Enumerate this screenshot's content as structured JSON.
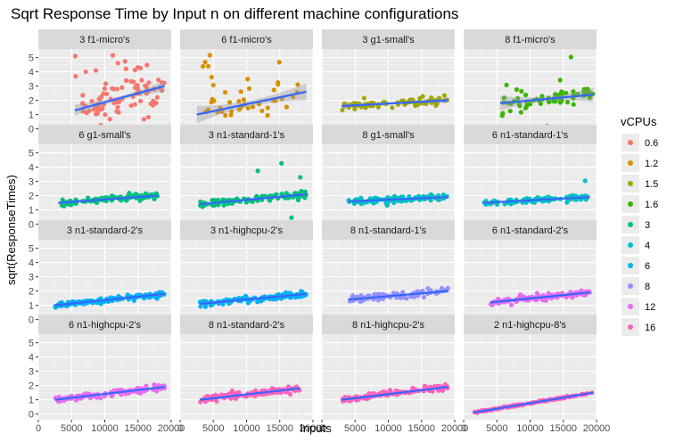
{
  "chart_data": {
    "type": "scatter",
    "title": "Sqrt Response Time by Input n on different machine configurations",
    "xlabel": "Inputs",
    "ylabel": "sqrt(ResponseTimes)",
    "xlim": [
      0,
      20000
    ],
    "ylim": [
      -0.4,
      5.6
    ],
    "x_ticks": [
      0,
      5000,
      10000,
      15000,
      20000
    ],
    "x_tick_labels": [
      "0",
      "5000",
      "10000",
      "15000",
      "20000"
    ],
    "y_ticks": [
      0,
      1,
      2,
      3,
      4,
      5
    ],
    "y_tick_labels": [
      "0",
      "1",
      "2",
      "3",
      "4",
      "5"
    ],
    "grid": true,
    "smoother": "linear fit with confidence band",
    "legend": {
      "title": "vCPUs",
      "placement": "right",
      "entries": [
        {
          "label": "0.6",
          "color": "#F8766D"
        },
        {
          "label": "1.2",
          "color": "#D89000"
        },
        {
          "label": "1.5",
          "color": "#A3A500"
        },
        {
          "label": "1.6",
          "color": "#39B600"
        },
        {
          "label": "3",
          "color": "#00BF7D"
        },
        {
          "label": "4",
          "color": "#00BFC4"
        },
        {
          "label": "6",
          "color": "#00B0F6"
        },
        {
          "label": "8",
          "color": "#9590FF"
        },
        {
          "label": "12",
          "color": "#E76BF3"
        },
        {
          "label": "16",
          "color": "#FF62BC"
        }
      ]
    },
    "panels": [
      {
        "label": "3 f1-micro's",
        "vcpus": "0.6",
        "x_range": [
          5500,
          19000
        ],
        "fit": [
          1.3,
          3.0
        ],
        "center": 2.1,
        "spread": 1.1,
        "outliers": 0.35,
        "band": 0.4,
        "n": 90
      },
      {
        "label": "6 f1-micro's",
        "vcpus": "1.2",
        "x_range": [
          2500,
          19000
        ],
        "fit": [
          1.0,
          2.6
        ],
        "center": 1.8,
        "spread": 0.9,
        "outliers": 0.3,
        "band": 0.6,
        "n": 45
      },
      {
        "label": "3 g1-small's",
        "vcpus": "1.5",
        "x_range": [
          3000,
          19000
        ],
        "fit": [
          1.6,
          2.0
        ],
        "center": 1.8,
        "spread": 0.25,
        "outliers": 0.0,
        "band": 0.2,
        "n": 80
      },
      {
        "label": "8 f1-micro's",
        "vcpus": "1.6",
        "x_range": [
          5500,
          19500
        ],
        "fit": [
          1.8,
          2.4
        ],
        "center": 2.0,
        "spread": 0.5,
        "outliers": 0.25,
        "band": 0.5,
        "n": 70
      },
      {
        "label": "6 g1-small's",
        "vcpus": "3",
        "x_range": [
          3000,
          18000
        ],
        "fit": [
          1.5,
          2.0
        ],
        "center": 1.7,
        "spread": 0.2,
        "outliers": 0.0,
        "band": 0.1,
        "n": 110
      },
      {
        "label": "3 n1-standard-1's",
        "vcpus": "3",
        "x_range": [
          3000,
          19000
        ],
        "fit": [
          1.4,
          2.1
        ],
        "center": 1.8,
        "spread": 0.25,
        "outliers": 0.03,
        "band": 0.1,
        "n": 110
      },
      {
        "label": "8 g1-small's",
        "vcpus": "4",
        "x_range": [
          4000,
          19000
        ],
        "fit": [
          1.6,
          1.9
        ],
        "center": 1.75,
        "spread": 0.2,
        "outliers": 0.0,
        "band": 0.1,
        "n": 110
      },
      {
        "label": "6 n1-standard-1's",
        "vcpus": "4",
        "x_range": [
          3000,
          19000
        ],
        "fit": [
          1.5,
          1.9
        ],
        "center": 1.7,
        "spread": 0.2,
        "outliers": 0.02,
        "band": 0.1,
        "n": 110
      },
      {
        "label": "3 n1-standard-2's",
        "vcpus": "6",
        "x_range": [
          2500,
          19000
        ],
        "fit": [
          1.0,
          1.8
        ],
        "center": 1.4,
        "spread": 0.2,
        "outliers": 0.0,
        "band": 0.1,
        "n": 130
      },
      {
        "label": "3 n1-highcpu-2's",
        "vcpus": "6",
        "x_range": [
          3000,
          19000
        ],
        "fit": [
          1.1,
          1.8
        ],
        "center": 1.45,
        "spread": 0.2,
        "outliers": 0.0,
        "band": 0.1,
        "n": 130
      },
      {
        "label": "8 n1-standard-1's",
        "vcpus": "8",
        "x_range": [
          4000,
          19000
        ],
        "fit": [
          1.4,
          2.0
        ],
        "center": 1.7,
        "spread": 0.25,
        "outliers": 0.0,
        "band": 0.1,
        "n": 110
      },
      {
        "label": "6 n1-standard-2's",
        "vcpus": "12",
        "x_range": [
          4000,
          19000
        ],
        "fit": [
          1.2,
          1.9
        ],
        "center": 1.5,
        "spread": 0.2,
        "outliers": 0.0,
        "band": 0.1,
        "n": 130
      },
      {
        "label": "6 n1-highcpu-2's",
        "vcpus": "12",
        "x_range": [
          2500,
          19000
        ],
        "fit": [
          1.0,
          1.9
        ],
        "center": 1.45,
        "spread": 0.2,
        "outliers": 0.0,
        "band": 0.1,
        "n": 110
      },
      {
        "label": "8 n1-standard-2's",
        "vcpus": "16",
        "x_range": [
          3000,
          18000
        ],
        "fit": [
          1.0,
          1.8
        ],
        "center": 1.4,
        "spread": 0.22,
        "outliers": 0.0,
        "band": 0.1,
        "n": 140
      },
      {
        "label": "8 n1-highcpu-2's",
        "vcpus": "16",
        "x_range": [
          3000,
          19000
        ],
        "fit": [
          1.0,
          1.9
        ],
        "center": 1.45,
        "spread": 0.2,
        "outliers": 0.0,
        "band": 0.1,
        "n": 130
      },
      {
        "label": "2 n1-highcpu-8's",
        "vcpus": "16",
        "x_range": [
          1500,
          19500
        ],
        "fit": [
          0.1,
          1.5
        ],
        "center": 0.8,
        "spread": 0.05,
        "outliers": 0.0,
        "band": 0.03,
        "n": 140
      }
    ]
  }
}
